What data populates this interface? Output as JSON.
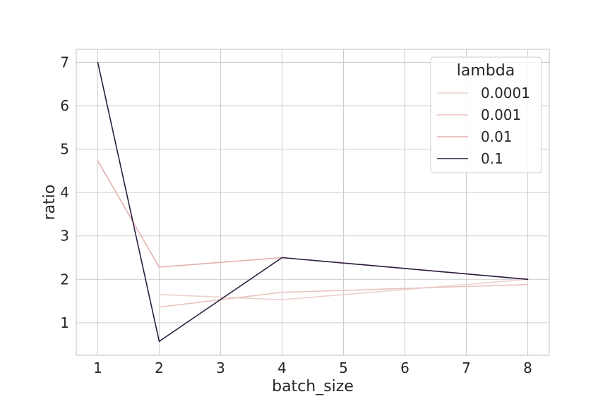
{
  "chart_data": {
    "type": "line",
    "xlabel": "batch_size",
    "ylabel": "ratio",
    "xlim": [
      0.65,
      8.35
    ],
    "ylim": [
      0.25,
      7.3
    ],
    "xticks": [
      1,
      2,
      3,
      4,
      5,
      6,
      7,
      8
    ],
    "yticks": [
      1,
      2,
      3,
      4,
      5,
      6,
      7
    ],
    "grid": true,
    "legend": {
      "title": "lambda",
      "placement": "top-right"
    },
    "series": [
      {
        "name": "0.0001",
        "color": "#ead3cc",
        "x": [
          2,
          4,
          8
        ],
        "y": [
          1.65,
          1.53,
          2.0
        ]
      },
      {
        "name": "0.001",
        "color": "#eac3c0",
        "x": [
          2,
          4,
          8
        ],
        "y": [
          1.36,
          1.7,
          1.88
        ]
      },
      {
        "name": "0.01",
        "color": "#e3b0ae",
        "x": [
          1,
          2,
          4,
          8
        ],
        "y": [
          4.73,
          2.28,
          2.5,
          2.0
        ]
      },
      {
        "name": "0.1",
        "color": "#2d1e3e",
        "x": [
          1,
          2,
          4,
          8
        ],
        "y": [
          7.0,
          0.57,
          2.5,
          2.0
        ]
      }
    ]
  }
}
